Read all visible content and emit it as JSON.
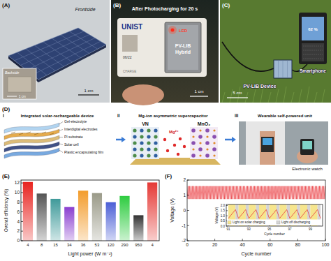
{
  "panels": {
    "A": {
      "label": "(A)",
      "frontside": "Frontside",
      "backside": "Backside",
      "scale": "1 cm",
      "scale_inset": "1 cm"
    },
    "B": {
      "label": "(B)",
      "caption": "After Photocharging for 20 s",
      "card_name": "UNIST",
      "card_date": "06/22",
      "card_word": "CHARGE",
      "led": "LED",
      "device": "PV-LIB",
      "device2": "Hybrid",
      "scale": "1 cm"
    },
    "C": {
      "label": "(C)",
      "device": "PV-LIB Device",
      "phone": "Smartphone",
      "battery": "62 %",
      "scale": "5 cm"
    },
    "D": {
      "label": "(D)",
      "parts": [
        {
          "number": "i",
          "title": "Integrated solar-rechargeable device"
        },
        {
          "number": "ii",
          "title": "Mg-ion asymmetric supercapacitor"
        },
        {
          "number": "iii",
          "title": "Wearable self-powered unit"
        }
      ],
      "layers": [
        "Gel-electrolyte",
        "Interdigital electrodes",
        "PI substrate",
        "Solar cell",
        "Plastic encapsulating film"
      ],
      "anode": "VN",
      "cathode": "MnO₂",
      "ion": "Mg²⁺",
      "watch": "Electronic watch"
    },
    "E": {
      "label": "(E)"
    },
    "F": {
      "label": "(F)"
    }
  },
  "chart_data": [
    {
      "type": "bar",
      "x_label": "Light power (W m⁻²)",
      "y_label": "Overall efficiency (%)",
      "categories": [
        "4",
        "8",
        "15",
        "34",
        "36",
        "53",
        "120",
        "290",
        "950",
        "4"
      ],
      "values": [
        12.2,
        9.8,
        8.7,
        7.0,
        10.4,
        9.9,
        8.0,
        9.3,
        5.3,
        12.1
      ],
      "colors": [
        "#e8231f",
        "#555555",
        "#3f9a9a",
        "#8a3fd0",
        "#f39c2b",
        "#9a9a88",
        "#4b5fd6",
        "#2ecc40",
        "#333333",
        "#e53935"
      ],
      "ylim": [
        0,
        12.6
      ],
      "yticks": [
        0,
        2,
        4,
        6,
        8,
        10,
        12
      ]
    },
    {
      "type": "line",
      "x_label": "Cycle number",
      "y_label": "Voltage (V)",
      "x": [
        0,
        0.7,
        1,
        1.7,
        2,
        2.7,
        3,
        3.7,
        4,
        4.7,
        5,
        5.7,
        6,
        6.7,
        7,
        7.7,
        8,
        8.7,
        9,
        9.7,
        10,
        10.7,
        11,
        11.7,
        12,
        12.7,
        13,
        13.7,
        14,
        14.7,
        15,
        15.7,
        16,
        16.7,
        17,
        17.7,
        18,
        18.7,
        19,
        19.7,
        20,
        20.7,
        21,
        21.7,
        22,
        22.7,
        23,
        23.7,
        24,
        24.7,
        25,
        25.7,
        26,
        26.7,
        27,
        27.7,
        28,
        28.7,
        29,
        29.7,
        30,
        30.7,
        31,
        31.7,
        32,
        32.7,
        33,
        33.7,
        34,
        34.7,
        35,
        35.7,
        36,
        36.7,
        37,
        37.7,
        38,
        38.7,
        39,
        39.7,
        40,
        40.7,
        41,
        41.7,
        42,
        42.7,
        43,
        43.7,
        44,
        44.7,
        45,
        45.7,
        46,
        46.7,
        47,
        47.7,
        48,
        48.7,
        49,
        49.7,
        50,
        50.7,
        51,
        51.7,
        52,
        52.7,
        53,
        53.7,
        54,
        54.7,
        55,
        55.7,
        56,
        56.7,
        57,
        57.7,
        58,
        58.7,
        59,
        59.7,
        60,
        60.7,
        61,
        61.7,
        62,
        62.7,
        63,
        63.7,
        64,
        64.7,
        65,
        65.7,
        66,
        66.7,
        67,
        67.7,
        68,
        68.7,
        69,
        69.7,
        70,
        70.7,
        71,
        71.7,
        72,
        72.7,
        73,
        73.7,
        74,
        74.7,
        75,
        75.7,
        76,
        76.7,
        77,
        77.7,
        78,
        78.7,
        79,
        79.7,
        80,
        80.7,
        81,
        81.7,
        82,
        82.7,
        83,
        83.7,
        84,
        84.7,
        85,
        85.7,
        86,
        86.7,
        87,
        87.7,
        88,
        88.7,
        89,
        89.7,
        90,
        90.7,
        91,
        91.7,
        92,
        92.7,
        93,
        93.7,
        94,
        94.7,
        95,
        95.7,
        96,
        96.7,
        97,
        97.7,
        98,
        98.7,
        99,
        99.7,
        100
      ],
      "series": [
        {
          "color": "#e8262b",
          "values": [
            0.75,
            1.6,
            0.75,
            1.6,
            0.75,
            1.6,
            0.75,
            1.6,
            0.75,
            1.6,
            0.75,
            1.6,
            0.75,
            1.6,
            0.75,
            1.6,
            0.75,
            1.6,
            0.75,
            1.6,
            0.75,
            1.6,
            0.75,
            1.6,
            0.75,
            1.6,
            0.75,
            1.6,
            0.75,
            1.6,
            0.75,
            1.6,
            0.75,
            1.6,
            0.75,
            1.6,
            0.75,
            1.6,
            0.75,
            1.6,
            0.75,
            1.6,
            0.75,
            1.6,
            0.75,
            1.6,
            0.75,
            1.6,
            0.75,
            1.6,
            0.75,
            1.6,
            0.75,
            1.6,
            0.75,
            1.6,
            0.75,
            1.6,
            0.75,
            1.6,
            0.75,
            1.6,
            0.75,
            1.6,
            0.75,
            1.6,
            0.75,
            1.6,
            0.75,
            1.6,
            0.75,
            1.6,
            0.75,
            1.6,
            0.75,
            1.6,
            0.75,
            1.6,
            0.75,
            1.6,
            0.75,
            1.6,
            0.75,
            1.6,
            0.75,
            1.6,
            0.75,
            1.6,
            0.75,
            1.6,
            0.75,
            1.6,
            0.75,
            1.6,
            0.75,
            1.6,
            0.75,
            1.6,
            0.75,
            1.6,
            0.75,
            1.6,
            0.75,
            1.6,
            0.75,
            1.6,
            0.75,
            1.6,
            0.75,
            1.6,
            0.75,
            1.6,
            0.75,
            1.6,
            0.75,
            1.6,
            0.75,
            1.6,
            0.75,
            1.6,
            0.75,
            1.6,
            0.75,
            1.6,
            0.75,
            1.6,
            0.75,
            1.6,
            0.75,
            1.6,
            0.75,
            1.6,
            0.75,
            1.6,
            0.75,
            1.6,
            0.75,
            1.6,
            0.75,
            1.6,
            0.75,
            1.6,
            0.75,
            1.6,
            0.75,
            1.6,
            0.75,
            1.6,
            0.75,
            1.6,
            0.75,
            1.6,
            0.75,
            1.6,
            0.75,
            1.6,
            0.75,
            1.6,
            0.75,
            1.6,
            0.75,
            1.6,
            0.75,
            1.6,
            0.75,
            1.6,
            0.75,
            1.6,
            0.75,
            1.6,
            0.75,
            1.6,
            0.75,
            1.6,
            0.75,
            1.6,
            0.75,
            1.6,
            0.75,
            1.6,
            0.75,
            1.6,
            0.75,
            1.6,
            0.75,
            1.6,
            0.75,
            1.6,
            0.75,
            1.6,
            0.75,
            1.6,
            0.75,
            1.6,
            0.75,
            1.6,
            0.75,
            1.6,
            0.75,
            1.6,
            0.75
          ]
        }
      ],
      "xlim": [
        0,
        100
      ],
      "xticks": [
        0,
        20,
        40,
        60,
        80,
        100
      ],
      "ylim": [
        -2,
        2
      ],
      "yticks": [
        -2,
        -1,
        0,
        1,
        2
      ]
    },
    {
      "type": "line",
      "x_label": "Cycle number",
      "y_label": "Voltage (V)",
      "x": [
        91,
        91.7,
        92,
        92.7,
        93,
        93.7,
        94,
        94.7,
        95,
        95.7,
        96,
        96.7,
        97,
        97.7,
        98,
        98.7,
        99,
        99.7,
        100
      ],
      "series": [
        {
          "color": "#e8262b",
          "values": [
            0.75,
            1.6,
            0.75,
            1.6,
            0.75,
            1.6,
            0.75,
            1.6,
            0.75,
            1.6,
            0.75,
            1.6,
            0.75,
            1.6,
            0.75,
            1.6,
            0.75,
            1.6,
            0.75
          ]
        }
      ],
      "xlim": [
        90.8,
        100.2
      ],
      "xticks": [
        91,
        93,
        95,
        97,
        99
      ],
      "ylim": [
        0,
        2.1
      ],
      "yticks": [
        {
          "value": 0,
          "label": "0.0"
        },
        0.5,
        {
          "value": 1,
          "label": "1.0"
        },
        1.5,
        {
          "value": 2,
          "label": "2.0"
        }
      ],
      "legend": "lower",
      "bands": [
        {
          "label": "Light on solar charging",
          "color": "#f6e58d"
        },
        {
          "label": "Light off discharging",
          "color": "#d4d4d4"
        }
      ]
    }
  ]
}
